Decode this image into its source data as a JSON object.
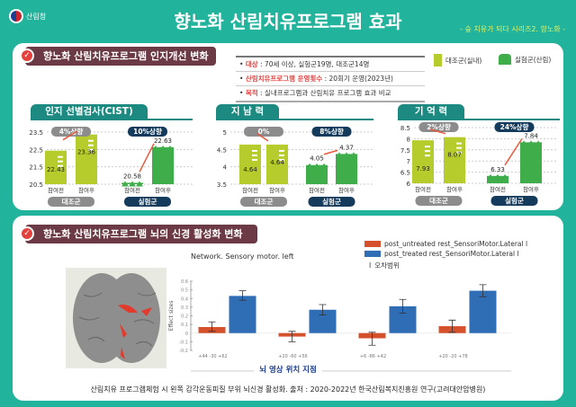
{
  "header": {
    "title": "향노화 산림치유프로그램 효과",
    "subtitle": "- 숲 치유가 되다 시리즈2. 향노화 -",
    "logo_text": "산림청"
  },
  "section1": {
    "title": "향노화 산림치유프로그램 인지개선 변화",
    "info": [
      {
        "key": "대상",
        "value": " : 70세 이상, 실험군19명, 대조군14명"
      },
      {
        "key": "산림치유프로그램 운영횟수",
        "value": " : 20회기 운영(2023년)"
      },
      {
        "key": "목적",
        "value": " : 실내프로그램과 산림치유 프로그램 효과 비교"
      }
    ],
    "legend": {
      "control": "대조군(실내)",
      "experimental": "실험군(산림)"
    },
    "colors": {
      "control": "#b6cc2c",
      "experimental": "#3fae4a",
      "arrow": "#e85a3c",
      "badge_control": "#8c8c8c",
      "badge_exp": "#143a5c"
    }
  },
  "chart_data": [
    {
      "type": "bar",
      "title": "인지 선별검사(CIST)",
      "yticks": [
        "23.5",
        "22.5",
        "21.5",
        "20.5"
      ],
      "ylim": [
        20.5,
        23.5
      ],
      "categories": [
        "참여전",
        "참여후",
        "참여전",
        "참여후"
      ],
      "groups": [
        "대조군",
        "실험군"
      ],
      "values": [
        22.43,
        23.36,
        20.58,
        22.63
      ],
      "value_labels": [
        "22.43",
        "23.36",
        "20.58",
        "22.63"
      ],
      "changes": [
        "4%상향",
        "10%상향"
      ]
    },
    {
      "type": "bar",
      "title": "지 남 력",
      "yticks": [
        "5",
        "4.5",
        "4",
        "3.5"
      ],
      "ylim": [
        3.5,
        5
      ],
      "categories": [
        "참여전",
        "참여후",
        "참여전",
        "참여후"
      ],
      "groups": [
        "대조군",
        "실험군"
      ],
      "values": [
        4.64,
        4.64,
        4.05,
        4.37
      ],
      "value_labels": [
        "4.64",
        "4.64",
        "4.05",
        "4.37"
      ],
      "changes": [
        "0%",
        "8%상향"
      ]
    },
    {
      "type": "bar",
      "title": "기 억 력",
      "yticks": [
        "8.5",
        "8",
        "7.5",
        "7",
        "6.5",
        "6"
      ],
      "ylim": [
        6,
        8.5
      ],
      "categories": [
        "참여전",
        "참여후",
        "참여전",
        "참여후"
      ],
      "groups": [
        "대조군",
        "실험군"
      ],
      "values": [
        7.93,
        8.07,
        6.33,
        7.84
      ],
      "value_labels": [
        "7.93",
        "8.07",
        "6.33",
        "7.84"
      ],
      "changes": [
        "2%상향",
        "24%상향"
      ]
    },
    {
      "type": "bar",
      "title": "Network. Sensory motor. left",
      "ylabel": "Effect sizes",
      "xlabel": "뇌 영상 위치 지점",
      "ylim": [
        -0.2,
        0.6
      ],
      "yticks": [
        "0.6",
        "0.5",
        "0.4",
        "0.3",
        "0.2",
        "0.1",
        "0",
        "-0.1",
        "-0.2"
      ],
      "categories": [
        "+44 -30 +62",
        "+20 -60 +56",
        "+6 -86 +42",
        "+20 -20 +78"
      ],
      "series": [
        {
          "name": "post_untreated rest_SensoriMotor.Lateral l",
          "color": "#d4512c",
          "values": [
            0.07,
            -0.04,
            -0.06,
            0.08
          ],
          "err_low": [
            0.02,
            -0.1,
            -0.14,
            0.01
          ],
          "err_high": [
            0.13,
            0.02,
            0.01,
            0.15
          ]
        },
        {
          "name": "post_treated rest_SensoriMotor.Lateral l",
          "color": "#2f6db5",
          "values": [
            0.43,
            0.27,
            0.31,
            0.49
          ],
          "err_low": [
            0.38,
            0.21,
            0.23,
            0.42
          ],
          "err_high": [
            0.49,
            0.33,
            0.39,
            0.56
          ]
        }
      ],
      "error_legend": "오차범위"
    }
  ],
  "section2": {
    "title": "향노화 산림치유프로그램 뇌의 신경 활성화 변화"
  },
  "caption": "산림치유 프로그램체험 시 왼쪽 감각운동피질 부위 뇌신경 활성화. 출처 : 2020-2022년 한국산림복지진흥원 연구(고려대안암병원)"
}
